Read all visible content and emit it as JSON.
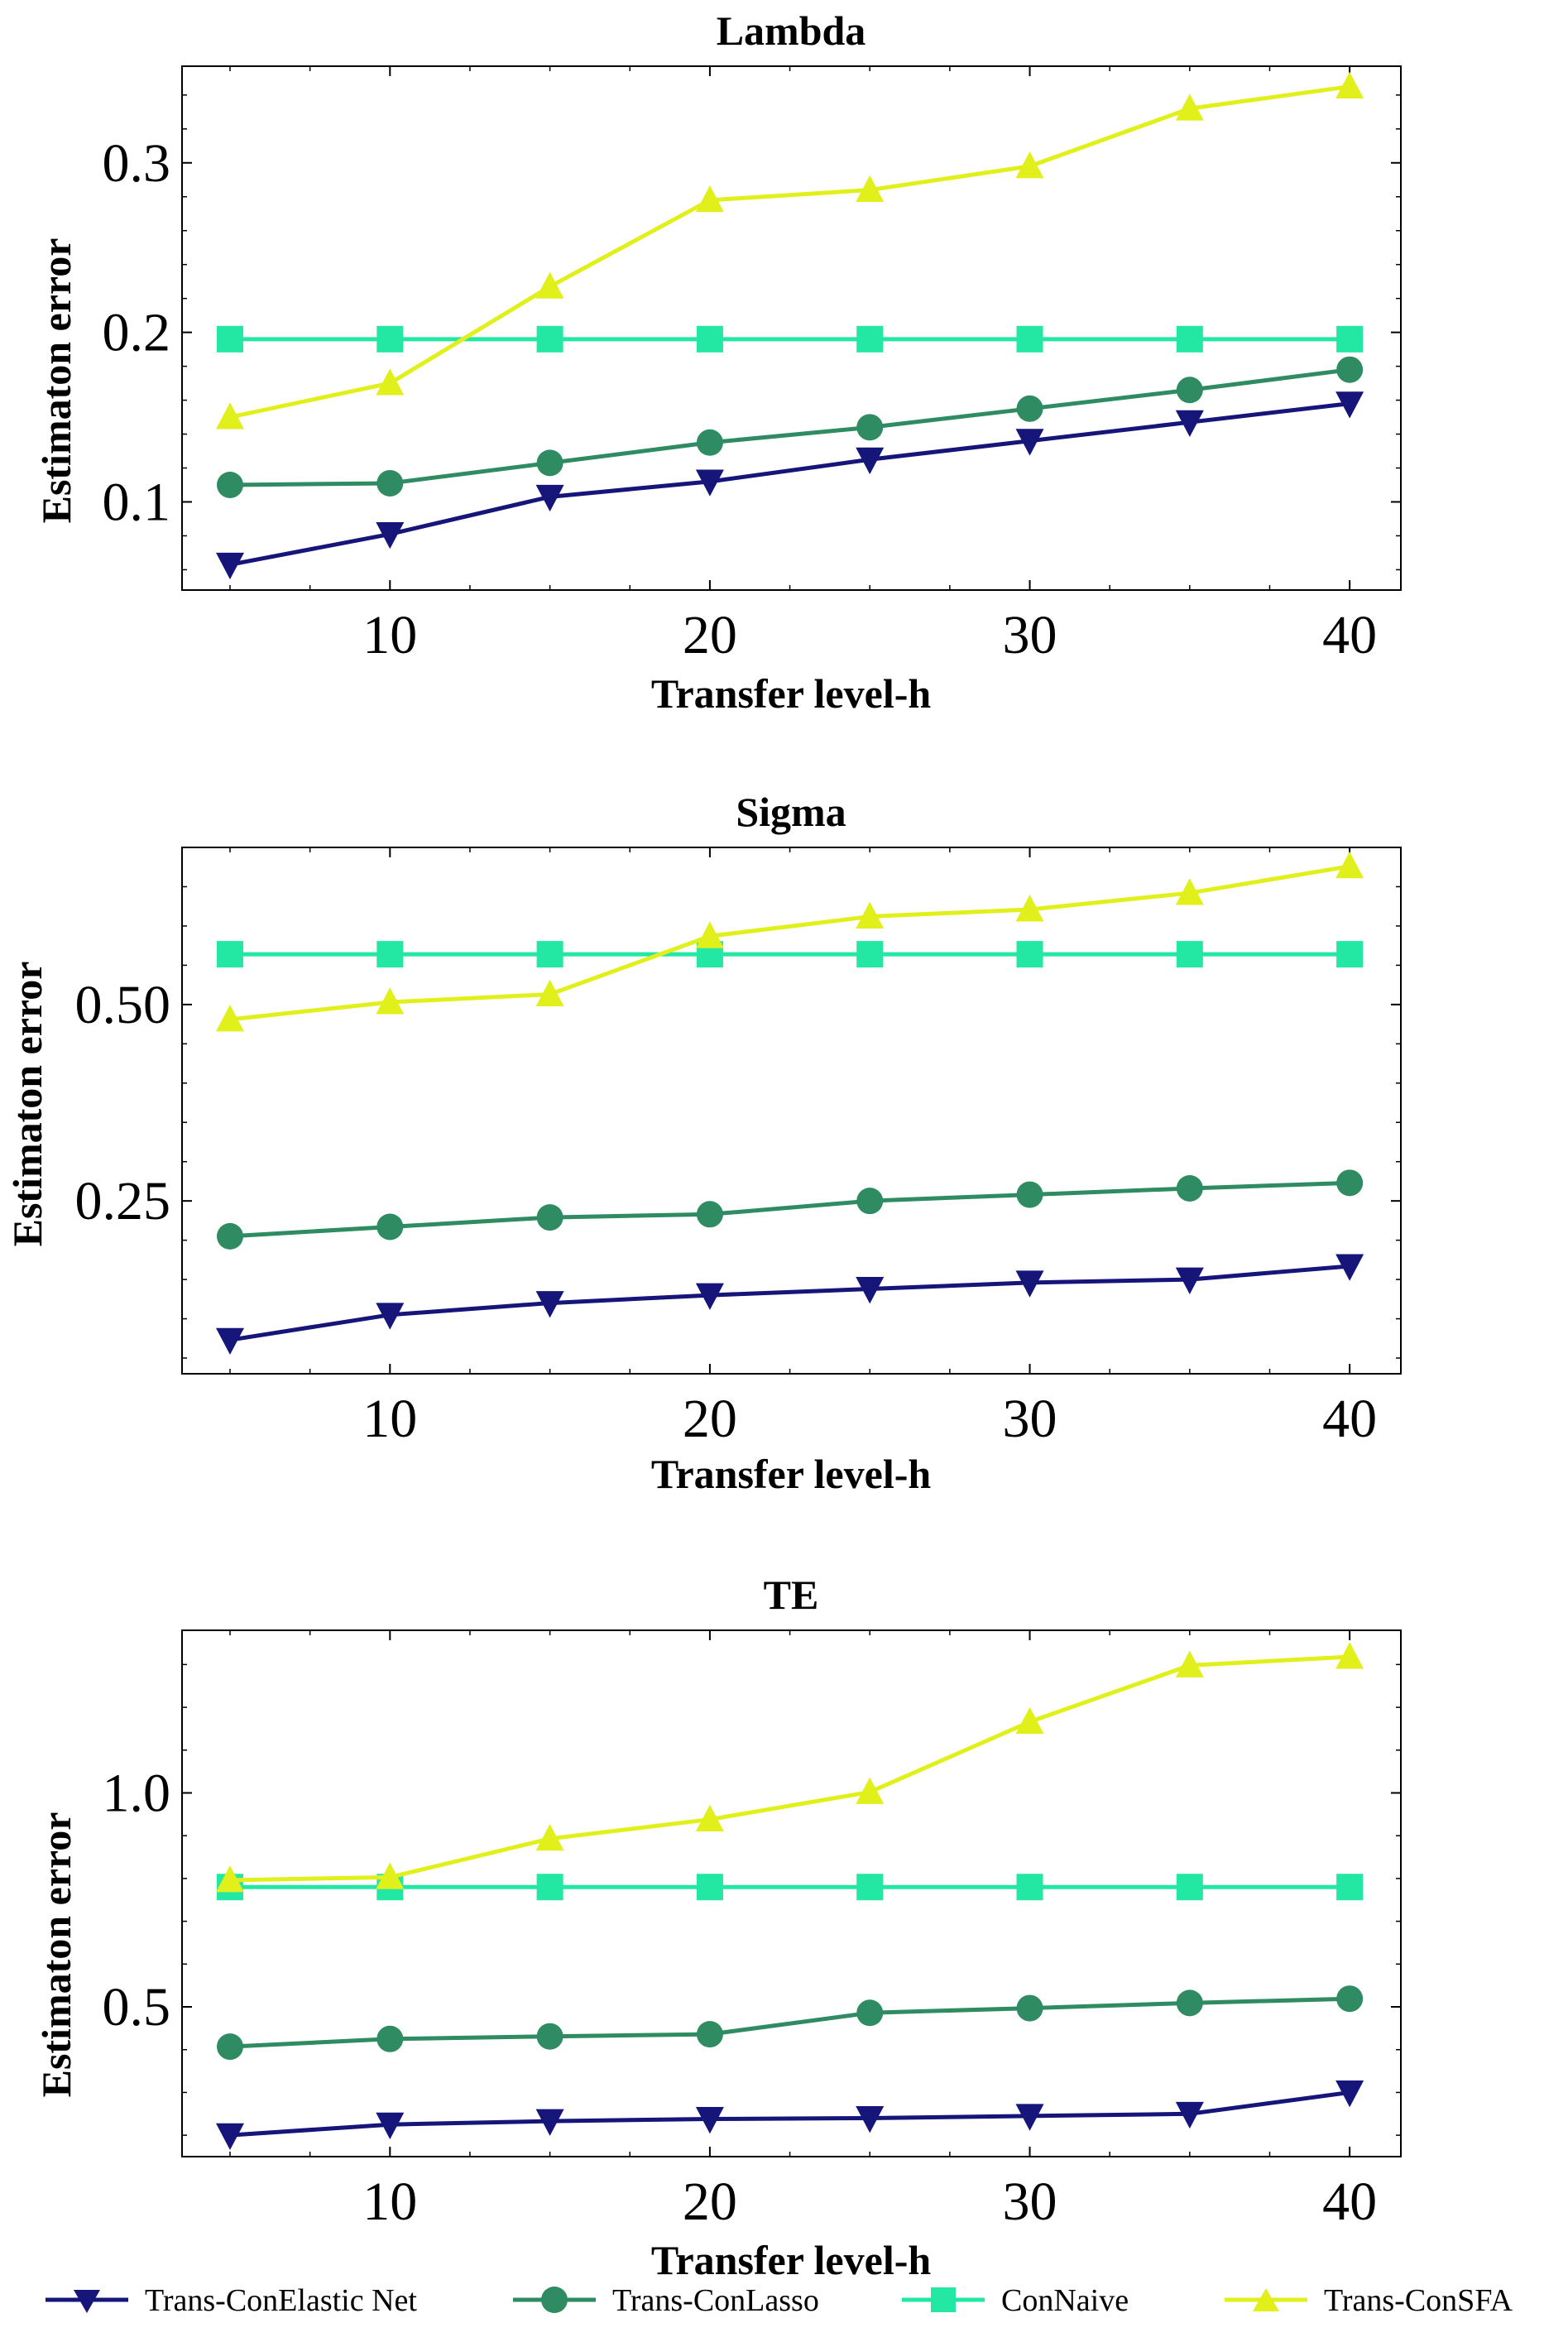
{
  "chart_data": [
    {
      "type": "line",
      "title": "Lambda",
      "xlabel": "Transfer level-h",
      "ylabel": "Estimaton error",
      "x": [
        5,
        10,
        15,
        20,
        25,
        30,
        35,
        40
      ],
      "xlim": [
        3.5,
        41.6
      ],
      "xticks": [
        10,
        20,
        30,
        40
      ],
      "xtick_labels": [
        "10",
        "20",
        "30",
        "40"
      ],
      "ylim": [
        0.048,
        0.357
      ],
      "yticks": [
        0.1,
        0.2,
        0.3
      ],
      "ytick_labels": [
        "0.1",
        "0.2",
        "0.3"
      ],
      "series": [
        {
          "name": "Trans-ConElastic Net",
          "values": [
            0.063,
            0.081,
            0.103,
            0.112,
            0.125,
            0.136,
            0.147,
            0.158
          ]
        },
        {
          "name": "Trans-ConLasso",
          "values": [
            0.11,
            0.111,
            0.123,
            0.135,
            0.144,
            0.155,
            0.166,
            0.178
          ]
        },
        {
          "name": "ConNaive",
          "values": [
            0.196,
            0.196,
            0.196,
            0.196,
            0.196,
            0.196,
            0.196,
            0.196
          ]
        },
        {
          "name": "Trans-ConSFA",
          "values": [
            0.15,
            0.17,
            0.227,
            0.278,
            0.284,
            0.298,
            0.332,
            0.345
          ]
        }
      ]
    },
    {
      "type": "line",
      "title": "Sigma",
      "xlabel": "Transfer level-h",
      "ylabel": "Estimaton error",
      "x": [
        5,
        10,
        15,
        20,
        25,
        30,
        35,
        40
      ],
      "xlim": [
        3.5,
        41.6
      ],
      "xticks": [
        10,
        20,
        30,
        40
      ],
      "xtick_labels": [
        "10",
        "20",
        "30",
        "40"
      ],
      "ylim": [
        0.03,
        0.7
      ],
      "yticks": [
        0.25,
        0.5
      ],
      "ytick_labels": [
        "0.25",
        "0.50"
      ],
      "series": [
        {
          "name": "Trans-ConElastic Net",
          "values": [
            0.073,
            0.105,
            0.12,
            0.13,
            0.138,
            0.146,
            0.15,
            0.167
          ]
        },
        {
          "name": "Trans-ConLasso",
          "values": [
            0.205,
            0.217,
            0.229,
            0.233,
            0.25,
            0.258,
            0.266,
            0.273
          ]
        },
        {
          "name": "ConNaive",
          "values": [
            0.564,
            0.564,
            0.564,
            0.564,
            0.564,
            0.564,
            0.564,
            0.564
          ]
        },
        {
          "name": "Trans-ConSFA",
          "values": [
            0.481,
            0.503,
            0.513,
            0.587,
            0.612,
            0.621,
            0.642,
            0.676
          ]
        }
      ]
    },
    {
      "type": "line",
      "title": "TE",
      "xlabel": "Transfer level-h",
      "ylabel": "Estimaton error",
      "x": [
        5,
        10,
        15,
        20,
        25,
        30,
        35,
        40
      ],
      "xlim": [
        3.5,
        41.6
      ],
      "xticks": [
        10,
        20,
        30,
        40
      ],
      "xtick_labels": [
        "10",
        "20",
        "30",
        "40"
      ],
      "ylim": [
        0.15,
        1.38
      ],
      "yticks": [
        0.5,
        1.0
      ],
      "ytick_labels": [
        "0.5",
        "1.0"
      ],
      "series": [
        {
          "name": "Trans-ConElastic Net",
          "values": [
            0.2,
            0.225,
            0.233,
            0.238,
            0.24,
            0.245,
            0.25,
            0.3
          ]
        },
        {
          "name": "Trans-ConLasso",
          "values": [
            0.407,
            0.425,
            0.431,
            0.436,
            0.486,
            0.497,
            0.509,
            0.519
          ]
        },
        {
          "name": "ConNaive",
          "values": [
            0.78,
            0.78,
            0.78,
            0.78,
            0.78,
            0.78,
            0.78,
            0.78
          ]
        },
        {
          "name": "Trans-ConSFA",
          "values": [
            0.796,
            0.803,
            0.893,
            0.938,
            1.002,
            1.166,
            1.298,
            1.318
          ]
        }
      ]
    }
  ],
  "legend": {
    "entries": [
      "Trans-ConElastic Net",
      "Trans-ConLasso",
      "ConNaive",
      "Trans-ConSFA"
    ],
    "placement": "bottom"
  },
  "colors": {
    "Trans-ConElastic Net": "#15157a",
    "Trans-ConLasso": "#2e8b62",
    "ConNaive": "#22e8a3",
    "Trans-ConSFA": "#e1f01a"
  },
  "markers": {
    "Trans-ConElastic Net": "triangle-down",
    "Trans-ConLasso": "circle",
    "ConNaive": "square",
    "Trans-ConSFA": "triangle-up"
  }
}
